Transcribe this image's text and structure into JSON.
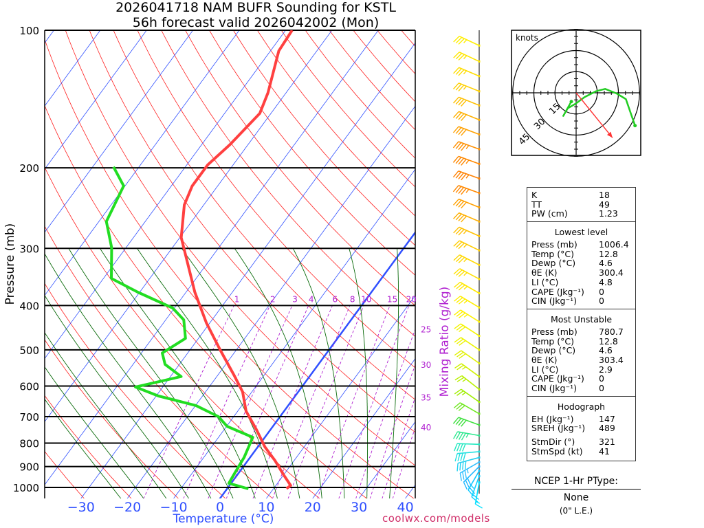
{
  "title": {
    "line1": "2026041718 NAM BUFR Sounding for KSTL",
    "line2": "56h forecast valid 2026042002 (Mon)"
  },
  "chart_data": {
    "type": "skew-t",
    "xlabel": "Temperature (°C)",
    "ylabel": "Pressure (mb)",
    "mixing_ratio_label": "Mixing Ratio (g/kg)",
    "pressure_ticks": [
      100,
      200,
      300,
      400,
      500,
      600,
      700,
      800,
      900,
      1000
    ],
    "pressure_tick_labels": [
      "100",
      "200",
      "300",
      "400",
      "500",
      "600",
      "700",
      "800",
      "900",
      "1000"
    ],
    "temperature_ticks": [
      -30,
      -20,
      -10,
      0,
      10,
      20,
      30,
      40
    ],
    "temperature_tick_labels": [
      "−30",
      "−20",
      "−10",
      "0",
      "10",
      "20",
      "30",
      "40"
    ],
    "pressure_range": [
      100,
      1056
    ],
    "mixing_ratio_lines": [
      1,
      2,
      3,
      4,
      6,
      8,
      10,
      15,
      20,
      25,
      30,
      35,
      40
    ],
    "mixing_ratio_top_labels": [
      "1",
      "2",
      "3",
      "4",
      "6",
      "8",
      "10",
      "15",
      "20"
    ],
    "mixing_ratio_side_labels": [
      "25",
      "30",
      "35",
      "40"
    ],
    "temperature_profile": [
      [
        1006,
        12.8
      ],
      [
        990,
        13.2
      ],
      [
        942,
        10.2
      ],
      [
        874,
        5.9
      ],
      [
        815,
        1.5
      ],
      [
        748,
        -3.0
      ],
      [
        681,
        -8.2
      ],
      [
        618,
        -12.0
      ],
      [
        567,
        -16.6
      ],
      [
        501,
        -23.4
      ],
      [
        437,
        -30.7
      ],
      [
        374,
        -38.1
      ],
      [
        284,
        -49.7
      ],
      [
        241,
        -54.2
      ],
      [
        219,
        -55.5
      ],
      [
        197,
        -55.5
      ],
      [
        178,
        -53.9
      ],
      [
        152,
        -52.4
      ],
      [
        137,
        -53.9
      ],
      [
        111,
        -58.2
      ],
      [
        100,
        -58.6
      ]
    ],
    "dewpoint_profile": [
      [
        1007,
        4.6
      ],
      [
        979,
        -0.5
      ],
      [
        936,
        -0.8
      ],
      [
        859,
        -1.3
      ],
      [
        777,
        -2.6
      ],
      [
        735,
        -9.9
      ],
      [
        700,
        -13.3
      ],
      [
        662,
        -19.9
      ],
      [
        631,
        -29.5
      ],
      [
        603,
        -35.9
      ],
      [
        572,
        -27.7
      ],
      [
        538,
        -33.1
      ],
      [
        508,
        -35.5
      ],
      [
        472,
        -32.8
      ],
      [
        430,
        -36.1
      ],
      [
        405,
        -40.4
      ],
      [
        374,
        -50.4
      ],
      [
        349,
        -58.3
      ],
      [
        299,
        -63.1
      ],
      [
        262,
        -68.4
      ],
      [
        219,
        -70.3
      ],
      [
        199,
        -75.5
      ]
    ],
    "winds": [
      {
        "p": 108,
        "dir": 295,
        "spd": 35,
        "color": "#ffee00"
      },
      {
        "p": 117,
        "dir": 295,
        "spd": 35,
        "color": "#ffe600"
      },
      {
        "p": 126,
        "dir": 293,
        "spd": 35,
        "color": "#ffdd00"
      },
      {
        "p": 136,
        "dir": 292,
        "spd": 35,
        "color": "#ffd000"
      },
      {
        "p": 146,
        "dir": 292,
        "spd": 40,
        "color": "#ffc000"
      },
      {
        "p": 157,
        "dir": 292,
        "spd": 40,
        "color": "#ffb000"
      },
      {
        "p": 169,
        "dir": 291,
        "spd": 40,
        "color": "#ffa000"
      },
      {
        "p": 182,
        "dir": 290,
        "spd": 45,
        "color": "#ff9000"
      },
      {
        "p": 196,
        "dir": 290,
        "spd": 45,
        "color": "#ff8800"
      },
      {
        "p": 211,
        "dir": 290,
        "spd": 45,
        "color": "#ff8000"
      },
      {
        "p": 227,
        "dir": 290,
        "spd": 45,
        "color": "#ff8800"
      },
      {
        "p": 244,
        "dir": 292,
        "spd": 40,
        "color": "#ffa000"
      },
      {
        "p": 262,
        "dir": 293,
        "spd": 40,
        "color": "#ffb000"
      },
      {
        "p": 282,
        "dir": 294,
        "spd": 35,
        "color": "#ffc000"
      },
      {
        "p": 303,
        "dir": 296,
        "spd": 35,
        "color": "#ffcc00"
      },
      {
        "p": 326,
        "dir": 297,
        "spd": 35,
        "color": "#ffd800"
      },
      {
        "p": 350,
        "dir": 298,
        "spd": 35,
        "color": "#ffe000"
      },
      {
        "p": 376,
        "dir": 300,
        "spd": 35,
        "color": "#ffe800"
      },
      {
        "p": 404,
        "dir": 301,
        "spd": 35,
        "color": "#ffee00"
      },
      {
        "p": 434,
        "dir": 302,
        "spd": 35,
        "color": "#fff200"
      },
      {
        "p": 466,
        "dir": 303,
        "spd": 30,
        "color": "#f4f400"
      },
      {
        "p": 500,
        "dir": 304,
        "spd": 30,
        "color": "#ecf400"
      },
      {
        "p": 535,
        "dir": 305,
        "spd": 30,
        "color": "#e0f000"
      },
      {
        "p": 572,
        "dir": 306,
        "spd": 25,
        "color": "#d0f000"
      },
      {
        "p": 610,
        "dir": 308,
        "spd": 25,
        "color": "#b8f000"
      },
      {
        "p": 650,
        "dir": 305,
        "spd": 25,
        "color": "#a0ee00"
      },
      {
        "p": 690,
        "dir": 300,
        "spd": 30,
        "color": "#70e820"
      },
      {
        "p": 730,
        "dir": 290,
        "spd": 40,
        "color": "#40e040"
      },
      {
        "p": 770,
        "dir": 280,
        "spd": 45,
        "color": "#30e890"
      },
      {
        "p": 805,
        "dir": 272,
        "spd": 40,
        "color": "#20e8c0"
      },
      {
        "p": 835,
        "dir": 265,
        "spd": 40,
        "color": "#20e0e0"
      },
      {
        "p": 860,
        "dir": 255,
        "spd": 40,
        "color": "#20d0f0"
      },
      {
        "p": 880,
        "dir": 240,
        "spd": 35,
        "color": "#30c0ff"
      },
      {
        "p": 900,
        "dir": 225,
        "spd": 30,
        "color": "#20b8ff"
      },
      {
        "p": 920,
        "dir": 210,
        "spd": 25,
        "color": "#10c8ff"
      },
      {
        "p": 945,
        "dir": 200,
        "spd": 20,
        "color": "#10d0ff"
      },
      {
        "p": 975,
        "dir": 190,
        "spd": 15,
        "color": "#00e0ff"
      }
    ],
    "hodograph": {
      "label": "knots",
      "rings": [
        15,
        30,
        45
      ],
      "ring_labels": [
        "15",
        "30",
        "45"
      ],
      "uv_kt": [
        [
          -3.4,
          -6.2
        ],
        [
          -9.1,
          -16.4
        ],
        [
          -6,
          -11
        ],
        [
          -0.5,
          -7.8
        ],
        [
          6,
          -3
        ],
        [
          14.1,
          1.1
        ],
        [
          20.6,
          2.8
        ],
        [
          28.8,
          -0.5
        ],
        [
          35.3,
          -4.5
        ],
        [
          41.8,
          -23.3
        ]
      ],
      "storm_motion": {
        "dir": 321,
        "spd": 41
      },
      "line_color": "#22cc22",
      "storm_color": "#ff3333"
    }
  },
  "indices": {
    "top": [
      {
        "k": "K",
        "v": "18"
      },
      {
        "k": "TT",
        "v": "49"
      },
      {
        "k": "PW (cm)",
        "v": "1.23"
      }
    ],
    "lowest": {
      "header": "Lowest level",
      "rows": [
        {
          "k": "Press (mb)",
          "v": "1006.4"
        },
        {
          "k": "Temp (°C)",
          "v": "12.8"
        },
        {
          "k": "Dewp (°C)",
          "v": "4.6"
        },
        {
          "k": "θE (K)",
          "v": "300.4"
        },
        {
          "k": "LI (°C)",
          "v": "4.8"
        },
        {
          "k": "CAPE (Jkg⁻¹)",
          "v": "0"
        },
        {
          "k": "CIN (Jkg⁻¹)",
          "v": "0"
        }
      ]
    },
    "unstable": {
      "header": "Most Unstable",
      "rows": [
        {
          "k": "Press (mb)",
          "v": "780.7"
        },
        {
          "k": "Temp (°C)",
          "v": "12.8"
        },
        {
          "k": "Dewp (°C)",
          "v": "4.6"
        },
        {
          "k": "θE (K)",
          "v": "303.4"
        },
        {
          "k": "LI (°C)",
          "v": "2.9"
        },
        {
          "k": "CAPE (Jkg⁻¹)",
          "v": "0"
        },
        {
          "k": "CIN (Jkg⁻¹)",
          "v": "0"
        }
      ]
    },
    "hodo": {
      "header": "Hodograph",
      "rows": [
        {
          "k": "EH (Jkg⁻¹)",
          "v": "147"
        },
        {
          "k": "SREH (Jkg⁻¹)",
          "v": "489"
        },
        {
          "k": "StmDir (°)",
          "v": "321"
        },
        {
          "k": "StmSpd (kt)",
          "v": "41"
        }
      ]
    }
  },
  "ptype": {
    "title": "NCEP 1-Hr PType:",
    "value": "None",
    "amount": "(0\" L.E.)"
  },
  "footer": "coolwx.com/models",
  "colors": {
    "temp": "#ff4040",
    "dewp": "#22dd22",
    "isotherm": "#3050ff",
    "dry": "#ff2020",
    "moist": "#0a6a0a",
    "mixing": "#b020d0"
  }
}
